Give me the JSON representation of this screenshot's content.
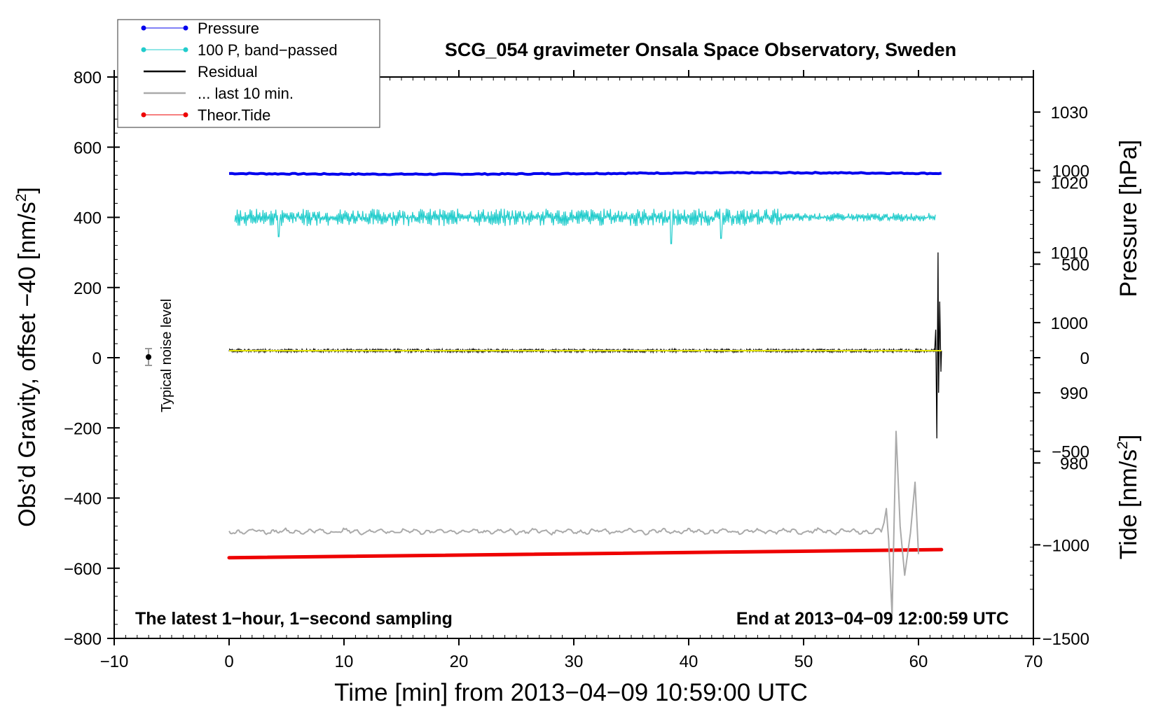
{
  "chart_data": {
    "type": "line",
    "title": "SCG_054 gravimeter Onsala Space Observatory, Sweden",
    "xlabel": "Time [min] from 2013−04−09 10:59:00 UTC",
    "ylabel_left": "Obs’d Gravity, offset −40 [nm/s2]",
    "ylabel_left_main": "Obs’d Gravity, offset −40 [nm/s",
    "ylabel_left_sup": "2",
    "ylabel_left_end": "]",
    "ylabel_pressure": "Pressure [hPa]",
    "ylabel_tide_main": "Tide [nm/s",
    "ylabel_tide_sup": "2",
    "ylabel_tide_end": "]",
    "xlim": [
      -10,
      70
    ],
    "ylim_left": [
      -800,
      800
    ],
    "ylim_pressure": [
      955,
      1035
    ],
    "ylim_tide": [
      -1500,
      1500
    ],
    "x_ticks": [
      -10,
      0,
      10,
      20,
      30,
      40,
      50,
      60,
      70
    ],
    "x_tick_labels": [
      "−10",
      "0",
      "10",
      "20",
      "30",
      "40",
      "50",
      "60",
      "70"
    ],
    "left_ticks": [
      800,
      600,
      400,
      200,
      0,
      -200,
      -400,
      -600,
      -800
    ],
    "left_tick_labels": [
      "800",
      "600",
      "400",
      "200",
      "0",
      "−200",
      "−400",
      "−600",
      "−800"
    ],
    "pressure_ticks": [
      1030,
      1020,
      1010,
      1000,
      990,
      980
    ],
    "pressure_tick_labels": [
      "1030",
      "1020",
      "1010",
      "1000",
      "990",
      "980"
    ],
    "tide_ticks": [
      1000,
      500,
      0,
      -500,
      -1000,
      -1500
    ],
    "tide_tick_labels": [
      "1000",
      "500",
      "0",
      "−500",
      "−1000",
      "−1500"
    ],
    "annotation_left": "The latest 1−hour, 1−second sampling",
    "annotation_right": "End at 2013−04−09 12:00:59 UTC",
    "noise_label": "Typical noise level",
    "noise_bar": {
      "x": -7,
      "y": 0,
      "err": 20
    },
    "legend": [
      {
        "label": "Pressure",
        "color": "#0000ee",
        "marker": true
      },
      {
        "label": "100 P, band−passed",
        "color": "#22cccc",
        "marker": true
      },
      {
        "label": "Residual",
        "color": "#000000",
        "marker": false
      },
      {
        "label": "... last 10 min.",
        "color": "#aaaaaa",
        "marker": false
      },
      {
        "label": "Theor.Tide",
        "color": "#ee0000",
        "marker": true
      }
    ],
    "series": [
      {
        "name": "Pressure",
        "color": "#0000ee",
        "axis": "left",
        "x_start": 0,
        "x_end": 62,
        "y_start": 525,
        "y_end": 525
      },
      {
        "name": "100 P, band−passed",
        "color": "#22cccc",
        "axis": "left",
        "x_start": 0.5,
        "x_end": 61.5,
        "y_center": 400,
        "amplitude": 25
      },
      {
        "name": "Residual",
        "color": "#000000",
        "axis": "left",
        "x_start": 0,
        "x_end": 62,
        "y_center": 20,
        "amplitude": 4,
        "spike_x": 61.7,
        "spike_range": [
          -230,
          300
        ]
      },
      {
        "name": "Residual (smoothed)",
        "color": "#e8e800",
        "axis": "left",
        "x_start": 0,
        "x_end": 62,
        "y_center": 20
      },
      {
        "name": "... last 10 min.",
        "color": "#aaaaaa",
        "axis": "left",
        "x_start": 0,
        "x_end": 60,
        "y_center": -495,
        "quake_x": [
          57,
          60
        ],
        "quake_range": [
          -735,
          -210
        ]
      },
      {
        "name": "Theor.Tide",
        "color": "#ee0000",
        "axis": "left",
        "x_start": 0,
        "x_end": 62,
        "y_start": -570,
        "y_end": -547
      }
    ]
  }
}
